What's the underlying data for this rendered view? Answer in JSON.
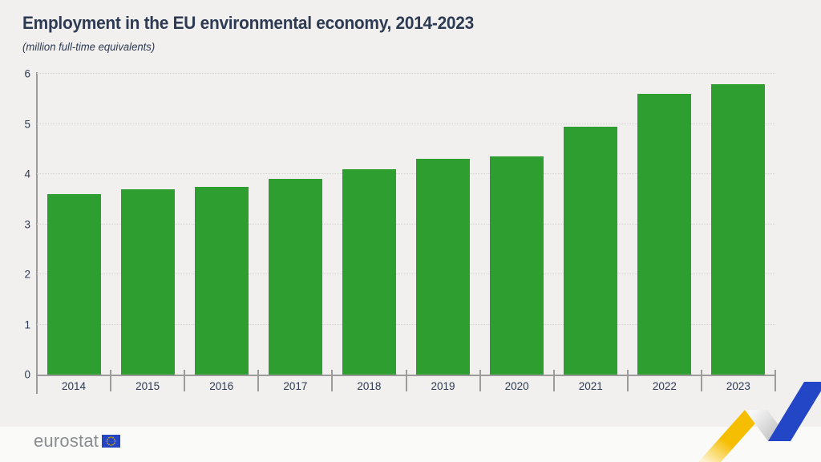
{
  "chart_data": {
    "type": "bar",
    "title": "Employment in the EU environmental economy, 2014-2023",
    "subtitle": "(million full-time equivalents)",
    "categories": [
      "2014",
      "2015",
      "2016",
      "2017",
      "2018",
      "2019",
      "2020",
      "2021",
      "2022",
      "2023"
    ],
    "values": [
      3.6,
      3.7,
      3.75,
      3.9,
      4.1,
      4.3,
      4.35,
      4.95,
      5.6,
      5.8
    ],
    "xlabel": "",
    "ylabel": "",
    "ylim": [
      0,
      6
    ],
    "yticks": [
      0,
      1,
      2,
      3,
      4,
      5,
      6
    ],
    "grid": "horizontal-dotted",
    "legend": "none",
    "bar_color": "#2f9e30"
  },
  "footer": {
    "logo_text": "eurostat"
  },
  "colors": {
    "background": "#f1f0ee",
    "footer_background": "#fafaf9",
    "text": "#2d3a53",
    "axis": "#9b9b9b",
    "gridline": "#d6d4d2",
    "logo_gray": "#8a8d90",
    "flag_blue": "#2444c4",
    "star_yellow": "#f6c400",
    "ribbon_yellow": "#f6be00",
    "ribbon_yellow_fade": "#fdf3cf",
    "ribbon_fold_light": "#f7f7f7",
    "ribbon_fold_dark": "#b9b9b9",
    "ribbon_blue": "#2346c7"
  }
}
